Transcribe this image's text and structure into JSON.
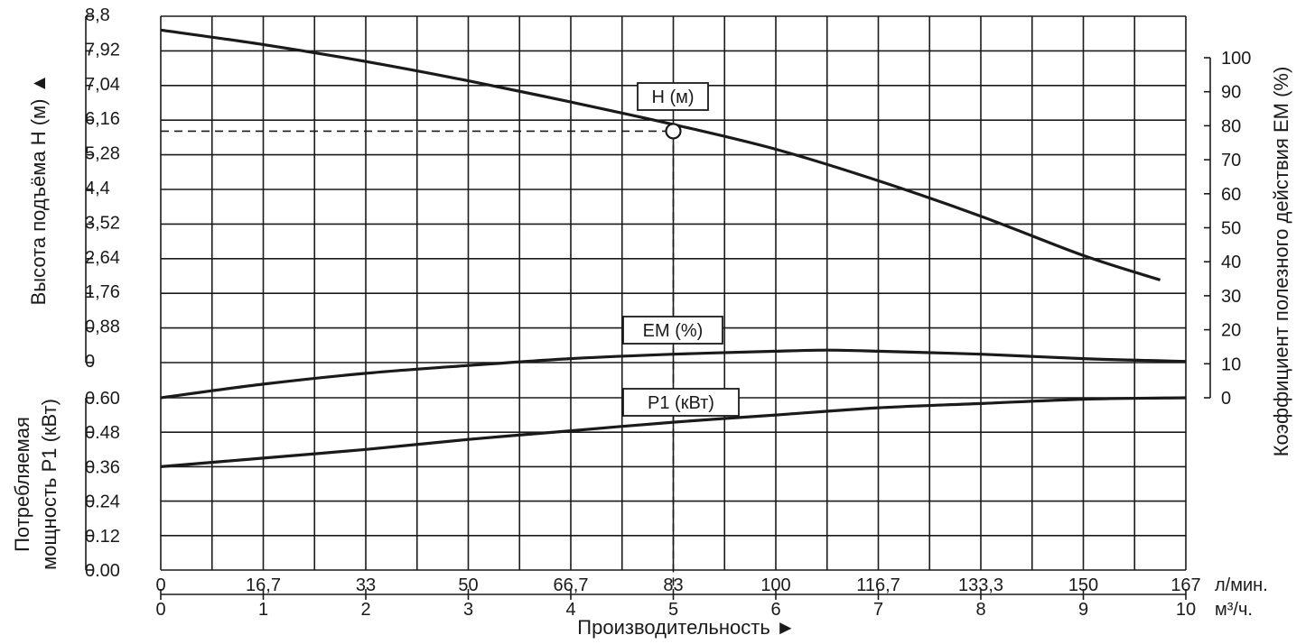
{
  "chart_data": {
    "type": "line",
    "x_label": "Производительность ►",
    "x_axis_lmin": {
      "unit": "л/мин.",
      "ticks": [
        "0",
        "16,7",
        "33",
        "50",
        "66,7",
        "83",
        "100",
        "116,7",
        "133,3",
        "150",
        "167"
      ]
    },
    "x_axis_m3h": {
      "unit": "м³/ч.",
      "ticks": [
        "0",
        "1",
        "2",
        "3",
        "4",
        "5",
        "6",
        "7",
        "8",
        "9",
        "10"
      ],
      "range": [
        0,
        10
      ]
    },
    "y_head": {
      "label": "Высота подъёма H (м) ▲",
      "ticks": [
        "0",
        "0,88",
        "1,76",
        "2,64",
        "3,52",
        "4,4",
        "5,28",
        "6,16",
        "7,04",
        "7,92",
        "8,8"
      ],
      "range": [
        0,
        8.8
      ]
    },
    "y_efficiency": {
      "label": "Коэффициент полезного действия ЕМ (%)",
      "ticks": [
        "0",
        "10",
        "20",
        "30",
        "40",
        "50",
        "60",
        "70",
        "80",
        "90",
        "100"
      ],
      "range": [
        0,
        100
      ]
    },
    "y_power": {
      "label_line1": "Потребляемая",
      "label_line2": "мощность Р1 (кВт)",
      "ticks": [
        "0.00",
        "0.12",
        "0.24",
        "0.36",
        "0.48",
        "0.60"
      ],
      "range": [
        0,
        0.6
      ]
    },
    "series": [
      {
        "name": "H (м)",
        "axis": "head",
        "x": [
          0,
          1,
          2,
          3,
          4,
          5,
          6,
          7,
          8,
          9,
          9.75
        ],
        "y": [
          8.45,
          8.08,
          7.65,
          7.16,
          6.62,
          6.05,
          5.42,
          4.62,
          3.72,
          2.72,
          2.1
        ]
      },
      {
        "name": "EM (%)",
        "axis": "efficiency",
        "x": [
          0,
          1,
          2,
          3,
          4,
          5,
          6,
          6.5,
          7,
          8,
          9,
          10
        ],
        "y": [
          0,
          4,
          7.2,
          9.5,
          11.5,
          12.8,
          13.7,
          14,
          13.7,
          12.8,
          11.5,
          10.7
        ]
      },
      {
        "name": "P1 (кВт)",
        "axis": "power",
        "x": [
          0,
          1,
          2,
          3,
          4,
          5,
          6,
          7,
          8,
          9,
          10
        ],
        "y": [
          0.36,
          0.39,
          0.42,
          0.455,
          0.485,
          0.515,
          0.54,
          0.565,
          0.58,
          0.595,
          0.6
        ]
      }
    ],
    "marker": {
      "x": 5,
      "y": 5.88
    },
    "grid": true
  }
}
